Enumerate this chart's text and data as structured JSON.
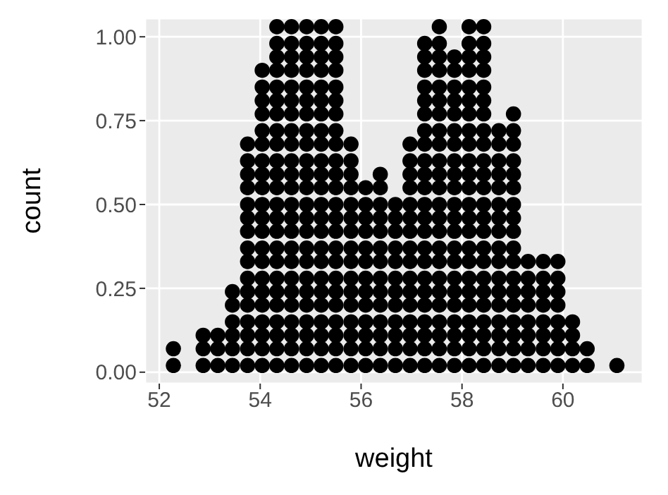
{
  "chart_data": {
    "type": "scatter",
    "xlabel": "weight",
    "ylabel": "count",
    "xlim": [
      51.72,
      61.58
    ],
    "ylim": [
      -0.034,
      1.055
    ],
    "xticks": [
      52,
      54,
      56,
      58,
      60
    ],
    "yticks": [
      {
        "value": 0,
        "label": "0.00"
      },
      {
        "value": 0.25,
        "label": "0.25"
      },
      {
        "value": 0.5,
        "label": "0.50"
      },
      {
        "value": 0.75,
        "label": "0.75"
      },
      {
        "value": 1,
        "label": "1.00"
      }
    ],
    "grid": true,
    "marker": "circle",
    "series": [
      {
        "color": "#000000",
        "x": [
          52.28,
          52.28
        ],
        "values": [
          0.02,
          0.07
        ]
      },
      {
        "color": "#000000",
        "x": [
          52.87,
          52.87,
          52.87
        ],
        "values": [
          0.02,
          0.07,
          0.11
        ]
      },
      {
        "color": "#000000",
        "x": [
          53.16,
          53.16,
          53.16
        ],
        "values": [
          0.02,
          0.07,
          0.11
        ]
      },
      {
        "color": "#000000",
        "x": [
          53.45,
          53.45,
          53.45,
          53.45,
          53.45,
          53.45
        ],
        "values": [
          0.02,
          0.07,
          0.11,
          0.15,
          0.2,
          0.24
        ]
      },
      {
        "color": "#000000",
        "x": [
          53.75,
          53.75,
          53.75,
          53.75,
          53.75,
          53.75,
          53.75,
          53.75,
          53.75,
          53.75,
          53.75,
          53.75,
          53.75,
          53.75,
          53.75,
          53.75
        ],
        "values": [
          0.02,
          0.07,
          0.11,
          0.15,
          0.2,
          0.24,
          0.28,
          0.33,
          0.37,
          0.42,
          0.46,
          0.5,
          0.55,
          0.59,
          0.63,
          0.68
        ]
      },
      {
        "color": "#000000",
        "x": [
          54.04,
          54.04,
          54.04,
          54.04,
          54.04,
          54.04,
          54.04,
          54.04,
          54.04,
          54.04,
          54.04,
          54.04,
          54.04,
          54.04,
          54.04,
          54.04,
          54.04,
          54.04,
          54.04,
          54.04,
          54.04
        ],
        "values": [
          0.02,
          0.07,
          0.11,
          0.15,
          0.2,
          0.24,
          0.28,
          0.33,
          0.37,
          0.42,
          0.46,
          0.5,
          0.55,
          0.59,
          0.63,
          0.68,
          0.72,
          0.77,
          0.81,
          0.85,
          0.9
        ]
      },
      {
        "color": "#000000",
        "x": [
          54.33,
          54.33,
          54.33,
          54.33,
          54.33,
          54.33,
          54.33,
          54.33,
          54.33,
          54.33,
          54.33,
          54.33,
          54.33,
          54.33,
          54.33,
          54.33,
          54.33,
          54.33,
          54.33,
          54.33,
          54.33,
          54.33,
          54.33,
          54.33
        ],
        "values": [
          0.02,
          0.07,
          0.11,
          0.15,
          0.2,
          0.24,
          0.28,
          0.33,
          0.37,
          0.42,
          0.46,
          0.5,
          0.55,
          0.59,
          0.63,
          0.68,
          0.72,
          0.77,
          0.81,
          0.85,
          0.9,
          0.94,
          0.98,
          1.03
        ]
      },
      {
        "color": "#000000",
        "x": [
          54.62,
          54.62,
          54.62,
          54.62,
          54.62,
          54.62,
          54.62,
          54.62,
          54.62,
          54.62,
          54.62,
          54.62,
          54.62,
          54.62,
          54.62,
          54.62,
          54.62,
          54.62,
          54.62,
          54.62,
          54.62,
          54.62,
          54.62,
          54.62
        ],
        "values": [
          0.02,
          0.07,
          0.11,
          0.15,
          0.2,
          0.24,
          0.28,
          0.33,
          0.37,
          0.42,
          0.46,
          0.5,
          0.55,
          0.59,
          0.63,
          0.68,
          0.72,
          0.77,
          0.81,
          0.85,
          0.9,
          0.94,
          0.98,
          1.03
        ]
      },
      {
        "color": "#000000",
        "x": [
          54.92,
          54.92,
          54.92,
          54.92,
          54.92,
          54.92,
          54.92,
          54.92,
          54.92,
          54.92,
          54.92,
          54.92,
          54.92,
          54.92,
          54.92,
          54.92,
          54.92,
          54.92,
          54.92,
          54.92,
          54.92,
          54.92,
          54.92,
          54.92
        ],
        "values": [
          0.02,
          0.07,
          0.11,
          0.15,
          0.2,
          0.24,
          0.28,
          0.33,
          0.37,
          0.42,
          0.46,
          0.5,
          0.55,
          0.59,
          0.63,
          0.68,
          0.72,
          0.77,
          0.81,
          0.85,
          0.9,
          0.94,
          0.98,
          1.03
        ]
      },
      {
        "color": "#000000",
        "x": [
          55.21,
          55.21,
          55.21,
          55.21,
          55.21,
          55.21,
          55.21,
          55.21,
          55.21,
          55.21,
          55.21,
          55.21,
          55.21,
          55.21,
          55.21,
          55.21,
          55.21,
          55.21,
          55.21,
          55.21,
          55.21,
          55.21,
          55.21,
          55.21
        ],
        "values": [
          0.02,
          0.07,
          0.11,
          0.15,
          0.2,
          0.24,
          0.28,
          0.33,
          0.37,
          0.42,
          0.46,
          0.5,
          0.55,
          0.59,
          0.63,
          0.68,
          0.72,
          0.77,
          0.81,
          0.85,
          0.9,
          0.94,
          0.98,
          1.03
        ]
      },
      {
        "color": "#000000",
        "x": [
          55.5,
          55.5,
          55.5,
          55.5,
          55.5,
          55.5,
          55.5,
          55.5,
          55.5,
          55.5,
          55.5,
          55.5,
          55.5,
          55.5,
          55.5,
          55.5,
          55.5,
          55.5,
          55.5,
          55.5,
          55.5,
          55.5,
          55.5,
          55.5
        ],
        "values": [
          0.02,
          0.07,
          0.11,
          0.15,
          0.2,
          0.24,
          0.28,
          0.33,
          0.37,
          0.42,
          0.46,
          0.5,
          0.55,
          0.59,
          0.63,
          0.68,
          0.72,
          0.77,
          0.81,
          0.85,
          0.9,
          0.94,
          0.98,
          1.03
        ]
      },
      {
        "color": "#000000",
        "x": [
          55.8,
          55.8,
          55.8,
          55.8,
          55.8,
          55.8,
          55.8,
          55.8,
          55.8,
          55.8,
          55.8,
          55.8,
          55.8,
          55.8,
          55.8,
          55.8
        ],
        "values": [
          0.02,
          0.07,
          0.11,
          0.15,
          0.2,
          0.24,
          0.28,
          0.33,
          0.37,
          0.42,
          0.46,
          0.5,
          0.55,
          0.59,
          0.63,
          0.68
        ]
      },
      {
        "color": "#000000",
        "x": [
          56.09,
          56.09,
          56.09,
          56.09,
          56.09,
          56.09,
          56.09,
          56.09,
          56.09,
          56.09,
          56.09,
          56.09,
          56.09
        ],
        "values": [
          0.02,
          0.07,
          0.11,
          0.15,
          0.2,
          0.24,
          0.28,
          0.33,
          0.37,
          0.42,
          0.46,
          0.5,
          0.55
        ]
      },
      {
        "color": "#000000",
        "x": [
          56.38,
          56.38,
          56.38,
          56.38,
          56.38,
          56.38,
          56.38,
          56.38,
          56.38,
          56.38,
          56.38,
          56.38,
          56.38,
          56.38
        ],
        "values": [
          0.02,
          0.07,
          0.11,
          0.15,
          0.2,
          0.24,
          0.28,
          0.33,
          0.37,
          0.42,
          0.46,
          0.5,
          0.55,
          0.59
        ]
      },
      {
        "color": "#000000",
        "x": [
          56.68,
          56.68,
          56.68,
          56.68,
          56.68,
          56.68,
          56.68,
          56.68,
          56.68,
          56.68,
          56.68,
          56.68
        ],
        "values": [
          0.02,
          0.07,
          0.11,
          0.15,
          0.2,
          0.24,
          0.28,
          0.33,
          0.37,
          0.42,
          0.46,
          0.5
        ]
      },
      {
        "color": "#000000",
        "x": [
          56.97,
          56.97,
          56.97,
          56.97,
          56.97,
          56.97,
          56.97,
          56.97,
          56.97,
          56.97,
          56.97,
          56.97,
          56.97,
          56.97,
          56.97,
          56.97
        ],
        "values": [
          0.02,
          0.07,
          0.11,
          0.15,
          0.2,
          0.24,
          0.28,
          0.33,
          0.37,
          0.42,
          0.46,
          0.5,
          0.55,
          0.59,
          0.63,
          0.68
        ]
      },
      {
        "color": "#000000",
        "x": [
          57.26,
          57.26,
          57.26,
          57.26,
          57.26,
          57.26,
          57.26,
          57.26,
          57.26,
          57.26,
          57.26,
          57.26,
          57.26,
          57.26,
          57.26,
          57.26,
          57.26,
          57.26,
          57.26,
          57.26,
          57.26,
          57.26,
          57.26
        ],
        "values": [
          0.02,
          0.07,
          0.11,
          0.15,
          0.2,
          0.24,
          0.28,
          0.33,
          0.37,
          0.42,
          0.46,
          0.5,
          0.55,
          0.59,
          0.63,
          0.68,
          0.72,
          0.77,
          0.81,
          0.85,
          0.9,
          0.94,
          0.98
        ]
      },
      {
        "color": "#000000",
        "x": [
          57.55,
          57.55,
          57.55,
          57.55,
          57.55,
          57.55,
          57.55,
          57.55,
          57.55,
          57.55,
          57.55,
          57.55,
          57.55,
          57.55,
          57.55,
          57.55,
          57.55,
          57.55,
          57.55,
          57.55,
          57.55,
          57.55,
          57.55,
          57.55
        ],
        "values": [
          0.02,
          0.07,
          0.11,
          0.15,
          0.2,
          0.24,
          0.28,
          0.33,
          0.37,
          0.42,
          0.46,
          0.5,
          0.55,
          0.59,
          0.63,
          0.68,
          0.72,
          0.77,
          0.81,
          0.85,
          0.9,
          0.94,
          0.98,
          1.03
        ]
      },
      {
        "color": "#000000",
        "x": [
          57.85,
          57.85,
          57.85,
          57.85,
          57.85,
          57.85,
          57.85,
          57.85,
          57.85,
          57.85,
          57.85,
          57.85,
          57.85,
          57.85,
          57.85,
          57.85,
          57.85,
          57.85,
          57.85,
          57.85,
          57.85,
          57.85
        ],
        "values": [
          0.02,
          0.07,
          0.11,
          0.15,
          0.2,
          0.24,
          0.28,
          0.33,
          0.37,
          0.42,
          0.46,
          0.5,
          0.55,
          0.59,
          0.63,
          0.68,
          0.72,
          0.77,
          0.81,
          0.85,
          0.9,
          0.94
        ]
      },
      {
        "color": "#000000",
        "x": [
          58.14,
          58.14,
          58.14,
          58.14,
          58.14,
          58.14,
          58.14,
          58.14,
          58.14,
          58.14,
          58.14,
          58.14,
          58.14,
          58.14,
          58.14,
          58.14,
          58.14,
          58.14,
          58.14,
          58.14,
          58.14,
          58.14,
          58.14,
          58.14
        ],
        "values": [
          0.02,
          0.07,
          0.11,
          0.15,
          0.2,
          0.24,
          0.28,
          0.33,
          0.37,
          0.42,
          0.46,
          0.5,
          0.55,
          0.59,
          0.63,
          0.68,
          0.72,
          0.77,
          0.81,
          0.85,
          0.9,
          0.94,
          0.98,
          1.03
        ]
      },
      {
        "color": "#000000",
        "x": [
          58.43,
          58.43,
          58.43,
          58.43,
          58.43,
          58.43,
          58.43,
          58.43,
          58.43,
          58.43,
          58.43,
          58.43,
          58.43,
          58.43,
          58.43,
          58.43,
          58.43,
          58.43,
          58.43,
          58.43,
          58.43,
          58.43,
          58.43,
          58.43
        ],
        "values": [
          0.02,
          0.07,
          0.11,
          0.15,
          0.2,
          0.24,
          0.28,
          0.33,
          0.37,
          0.42,
          0.46,
          0.5,
          0.55,
          0.59,
          0.63,
          0.68,
          0.72,
          0.77,
          0.81,
          0.85,
          0.9,
          0.94,
          0.98,
          1.03
        ]
      },
      {
        "color": "#000000",
        "x": [
          58.73,
          58.73,
          58.73,
          58.73,
          58.73,
          58.73,
          58.73,
          58.73,
          58.73,
          58.73,
          58.73,
          58.73,
          58.73,
          58.73,
          58.73,
          58.73,
          58.73
        ],
        "values": [
          0.02,
          0.07,
          0.11,
          0.15,
          0.2,
          0.24,
          0.28,
          0.33,
          0.37,
          0.42,
          0.46,
          0.5,
          0.55,
          0.59,
          0.63,
          0.68,
          0.72
        ]
      },
      {
        "color": "#000000",
        "x": [
          59.02,
          59.02,
          59.02,
          59.02,
          59.02,
          59.02,
          59.02,
          59.02,
          59.02,
          59.02,
          59.02,
          59.02,
          59.02,
          59.02,
          59.02,
          59.02,
          59.02,
          59.02
        ],
        "values": [
          0.02,
          0.07,
          0.11,
          0.15,
          0.2,
          0.24,
          0.28,
          0.33,
          0.37,
          0.42,
          0.46,
          0.5,
          0.55,
          0.59,
          0.63,
          0.68,
          0.72,
          0.77
        ]
      },
      {
        "color": "#000000",
        "x": [
          59.31,
          59.31,
          59.31,
          59.31,
          59.31,
          59.31,
          59.31,
          59.31
        ],
        "values": [
          0.02,
          0.07,
          0.11,
          0.15,
          0.2,
          0.24,
          0.28,
          0.33
        ]
      },
      {
        "color": "#000000",
        "x": [
          59.61,
          59.61,
          59.61,
          59.61,
          59.61,
          59.61,
          59.61,
          59.61
        ],
        "values": [
          0.02,
          0.07,
          0.11,
          0.15,
          0.2,
          0.24,
          0.28,
          0.33
        ]
      },
      {
        "color": "#000000",
        "x": [
          59.9,
          59.9,
          59.9,
          59.9,
          59.9,
          59.9,
          59.9,
          59.9
        ],
        "values": [
          0.02,
          0.07,
          0.11,
          0.15,
          0.2,
          0.24,
          0.28,
          0.33
        ]
      },
      {
        "color": "#000000",
        "x": [
          60.19,
          60.19,
          60.19,
          60.19
        ],
        "values": [
          0.02,
          0.07,
          0.11,
          0.15
        ]
      },
      {
        "color": "#000000",
        "x": [
          60.48,
          60.48
        ],
        "values": [
          0.02,
          0.07
        ]
      },
      {
        "color": "#000000",
        "x": [
          61.07
        ],
        "values": [
          0.02
        ]
      }
    ]
  }
}
